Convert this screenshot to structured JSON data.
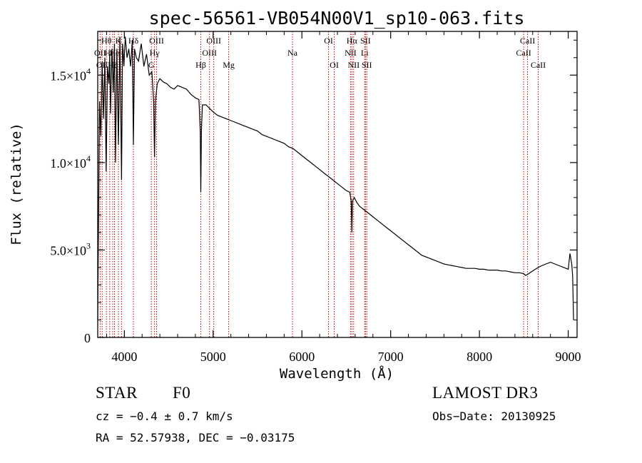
{
  "chart_data": {
    "type": "line",
    "title": "spec-56561-VB054N00V1_sp10-063.fits",
    "xlabel": "Wavelength (Å)",
    "ylabel": "Flux (relative)",
    "xlim": [
      3700,
      9100
    ],
    "ylim": [
      0,
      17500
    ],
    "xticks": [
      {
        "value": 4000,
        "label": "4000"
      },
      {
        "value": 5000,
        "label": "5000"
      },
      {
        "value": 6000,
        "label": "6000"
      },
      {
        "value": 7000,
        "label": "7000"
      },
      {
        "value": 8000,
        "label": "8000"
      },
      {
        "value": 9000,
        "label": "9000"
      }
    ],
    "yticks": [
      {
        "value": 0,
        "mantissa": "0",
        "exp": ""
      },
      {
        "value": 5000,
        "mantissa": "5.0×10",
        "exp": "3"
      },
      {
        "value": 10000,
        "mantissa": "1.0×10",
        "exp": "4"
      },
      {
        "value": 15000,
        "mantissa": "1.5×10",
        "exp": "4"
      }
    ],
    "series": [
      {
        "name": "spectrum",
        "x": [
          3700,
          3720,
          3735,
          3750,
          3765,
          3780,
          3795,
          3810,
          3825,
          3835,
          3845,
          3860,
          3875,
          3889,
          3900,
          3915,
          3933,
          3950,
          3968,
          3980,
          3995,
          4010,
          4030,
          4050,
          4070,
          4090,
          4102,
          4115,
          4135,
          4160,
          4190,
          4220,
          4250,
          4280,
          4310,
          4330,
          4340,
          4350,
          4370,
          4400,
          4440,
          4480,
          4520,
          4560,
          4600,
          4650,
          4700,
          4750,
          4800,
          4840,
          4855,
          4861,
          4868,
          4880,
          4920,
          4960,
          5000,
          5050,
          5100,
          5150,
          5200,
          5250,
          5300,
          5350,
          5400,
          5450,
          5500,
          5550,
          5600,
          5650,
          5700,
          5750,
          5800,
          5850,
          5900,
          5950,
          6000,
          6050,
          6100,
          6150,
          6200,
          6250,
          6300,
          6350,
          6400,
          6450,
          6500,
          6540,
          6555,
          6563,
          6570,
          6590,
          6620,
          6650,
          6700,
          6750,
          6800,
          6850,
          6900,
          6950,
          7000,
          7050,
          7100,
          7150,
          7200,
          7250,
          7300,
          7350,
          7400,
          7450,
          7500,
          7550,
          7600,
          7650,
          7700,
          7750,
          7800,
          7850,
          7900,
          7950,
          8000,
          8050,
          8100,
          8150,
          8200,
          8250,
          8300,
          8350,
          8400,
          8450,
          8498,
          8520,
          8542,
          8570,
          8600,
          8630,
          8662,
          8700,
          8750,
          8800,
          8850,
          8900,
          8950,
          9000,
          9020,
          9040,
          9050,
          9060
        ],
        "values": [
          1000,
          13500,
          11500,
          15800,
          12500,
          16000,
          9500,
          15500,
          14500,
          16200,
          12800,
          16500,
          14000,
          16800,
          10000,
          16500,
          11000,
          17200,
          9000,
          16800,
          15500,
          17200,
          16000,
          16500,
          15500,
          17000,
          11000,
          16500,
          16000,
          15800,
          16800,
          15500,
          16200,
          15000,
          15200,
          13500,
          10300,
          13500,
          14500,
          14800,
          14600,
          14500,
          14300,
          14200,
          14400,
          14300,
          14200,
          13900,
          13700,
          13600,
          11800,
          8300,
          11900,
          13300,
          13300,
          13100,
          12900,
          12700,
          12600,
          12500,
          12400,
          12300,
          12200,
          12100,
          12000,
          11900,
          11800,
          11600,
          11500,
          11400,
          11300,
          11200,
          11100,
          10900,
          10800,
          10600,
          10400,
          10200,
          10000,
          9800,
          9600,
          9400,
          9200,
          9000,
          8800,
          8600,
          8400,
          8300,
          7800,
          6000,
          7800,
          8000,
          7700,
          7500,
          7300,
          7100,
          6900,
          6700,
          6500,
          6300,
          6100,
          5900,
          5700,
          5500,
          5300,
          5100,
          4900,
          4700,
          4600,
          4500,
          4400,
          4300,
          4200,
          4150,
          4100,
          4050,
          4000,
          3950,
          3950,
          3950,
          3900,
          3900,
          3850,
          3850,
          3850,
          3800,
          3800,
          3750,
          3700,
          3700,
          3650,
          3550,
          3600,
          3700,
          3800,
          3900,
          4000,
          4100,
          4200,
          4300,
          4200,
          4100,
          4000,
          3900,
          4800,
          4200,
          3500,
          1000
        ]
      }
    ],
    "line_markers": [
      {
        "x": 3727,
        "label": "OII",
        "row": 2
      },
      {
        "x": 3750,
        "label": "OII",
        "row": 3
      },
      {
        "x": 3798,
        "label": "Hθ",
        "row": 1
      },
      {
        "x": 3835,
        "label": "Hη",
        "row": 2
      },
      {
        "x": 3869,
        "label": "Hζ",
        "row": 3
      },
      {
        "x": 3889,
        "label": "He",
        "row": 2
      },
      {
        "x": 3933,
        "label": "K",
        "row": 1
      },
      {
        "x": 3968,
        "label": "H",
        "row": 2
      },
      {
        "x": 4102,
        "label": "Hδ",
        "row": 1
      },
      {
        "x": 4304,
        "label": "G",
        "row": 3
      },
      {
        "x": 4340,
        "label": "Hγ",
        "row": 2
      },
      {
        "x": 4363,
        "label": "OIII",
        "row": 1
      },
      {
        "x": 4861,
        "label": "Hβ",
        "row": 3
      },
      {
        "x": 4959,
        "label": "OIII",
        "row": 2
      },
      {
        "x": 5007,
        "label": "OIII",
        "row": 1
      },
      {
        "x": 5175,
        "label": "Mg",
        "row": 3
      },
      {
        "x": 5894,
        "label": "Na",
        "row": 2
      },
      {
        "x": 6300,
        "label": "OI",
        "row": 1
      },
      {
        "x": 6364,
        "label": "OI",
        "row": 3
      },
      {
        "x": 6548,
        "label": "NII",
        "row": 2
      },
      {
        "x": 6563,
        "label": "Hα",
        "row": 1
      },
      {
        "x": 6583,
        "label": "NII",
        "row": 3
      },
      {
        "x": 6707,
        "label": "Li",
        "row": 2
      },
      {
        "x": 6716,
        "label": "SII",
        "row": 1
      },
      {
        "x": 6731,
        "label": "SII",
        "row": 3
      },
      {
        "x": 8498,
        "label": "CaII",
        "row": 2
      },
      {
        "x": 8542,
        "label": "CaII",
        "row": 1
      },
      {
        "x": 8662,
        "label": "CaII",
        "row": 3
      }
    ]
  },
  "info": {
    "object_class": "STAR",
    "subclass": "F0",
    "redshift": "cz = −0.4 ± 0.7 km/s",
    "coords": "RA =  52.57938, DEC =  −0.03175",
    "survey": "LAMOST DR3",
    "obs_date": "Obs−Date: 20130925"
  },
  "colors": {
    "marker": "#cc0000",
    "spectrum": "#000000"
  }
}
